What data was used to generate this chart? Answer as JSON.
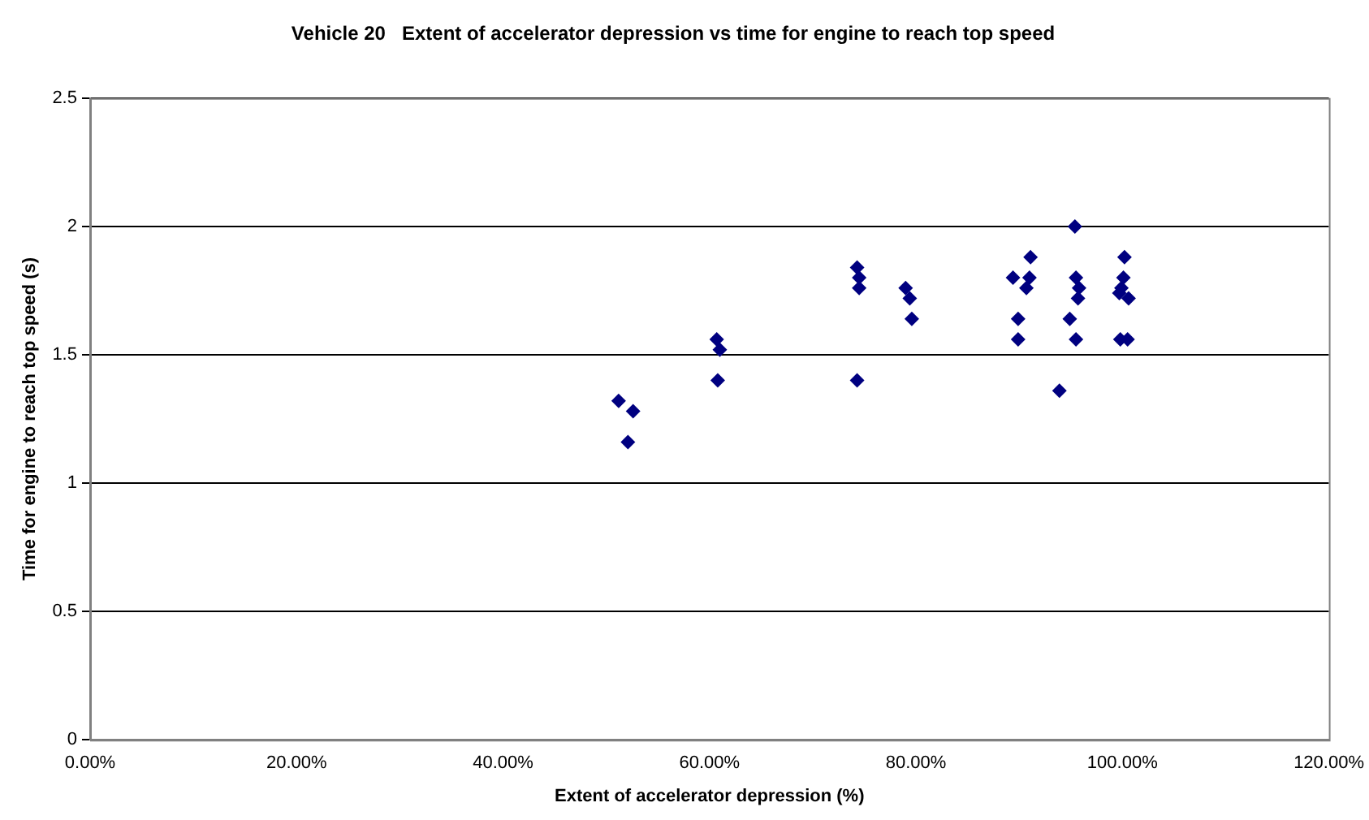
{
  "chart_data": {
    "type": "scatter",
    "title": "Vehicle 20   Extent of accelerator depression vs time for engine to reach top speed",
    "xlabel": "Extent of accelerator depression (%)",
    "ylabel": "Time for engine to reach top speed (s)",
    "x": [
      51.2,
      52.6,
      52.1,
      60.7,
      61.0,
      60.8,
      74.3,
      74.5,
      74.5,
      74.3,
      79.0,
      79.4,
      79.6,
      91.1,
      89.4,
      91.0,
      90.7,
      89.9,
      89.9,
      95.4,
      95.5,
      95.8,
      95.7,
      94.9,
      95.5,
      93.9,
      100.2,
      100.1,
      99.9,
      99.8,
      100.6,
      99.7,
      100.5
    ],
    "values": [
      1.32,
      1.28,
      1.16,
      1.56,
      1.52,
      1.4,
      1.84,
      1.8,
      1.76,
      1.4,
      1.76,
      1.72,
      1.64,
      1.88,
      1.8,
      1.8,
      1.76,
      1.64,
      1.56,
      2.0,
      1.8,
      1.76,
      1.72,
      1.64,
      1.56,
      1.36,
      1.88,
      1.8,
      1.76,
      1.56,
      1.72,
      1.74,
      1.56
    ],
    "color": "#000080",
    "marker": "diamond",
    "grid": "y",
    "legend": false,
    "xlim": [
      0,
      120
    ],
    "xticks": [
      {
        "value": 0,
        "label": "0.00%"
      },
      {
        "value": 20,
        "label": "20.00%"
      },
      {
        "value": 40,
        "label": "40.00%"
      },
      {
        "value": 60,
        "label": "60.00%"
      },
      {
        "value": 80,
        "label": "80.00%"
      },
      {
        "value": 100,
        "label": "100.00%"
      },
      {
        "value": 120,
        "label": "120.00%"
      }
    ],
    "ylim": [
      0,
      2.5
    ],
    "yticks": [
      0,
      0.5,
      1,
      1.5,
      2,
      2.5
    ]
  }
}
